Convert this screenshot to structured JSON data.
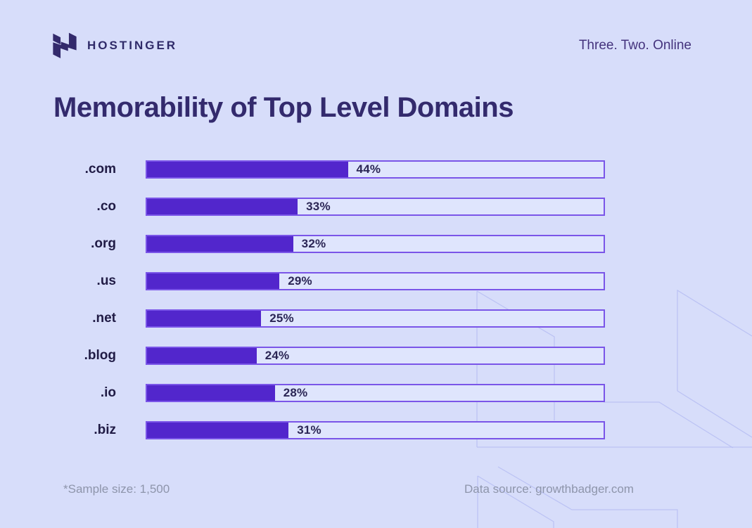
{
  "brand": {
    "name": "HOSTINGER",
    "tagline": "Three. Two. Online"
  },
  "title": "Memorability of Top Level Domains",
  "chart_data": {
    "type": "bar",
    "orientation": "horizontal",
    "title": "Memorability of Top Level Domains",
    "categories": [
      ".com",
      ".co",
      ".org",
      ".us",
      ".net",
      ".blog",
      ".io",
      ".biz"
    ],
    "values": [
      44,
      33,
      32,
      29,
      25,
      24,
      28,
      31
    ],
    "value_suffix": "%",
    "xlim": [
      0,
      100
    ],
    "grid": false,
    "legend": "none",
    "bar_color": "#5226cc",
    "track_color": "#dfe5fd",
    "track_border_color": "#7a55e8",
    "background_color": "#d7ddfa"
  },
  "footer": {
    "sample_note": "*Sample size: 1,500",
    "source_note": "Data source: growthbadger.com"
  },
  "colors": {
    "title_text": "#332a6d",
    "label_text": "#201b45",
    "footer_text": "#8e95ab",
    "brand_text": "#2f2a69",
    "decor_stroke": "#b4bcf2"
  }
}
